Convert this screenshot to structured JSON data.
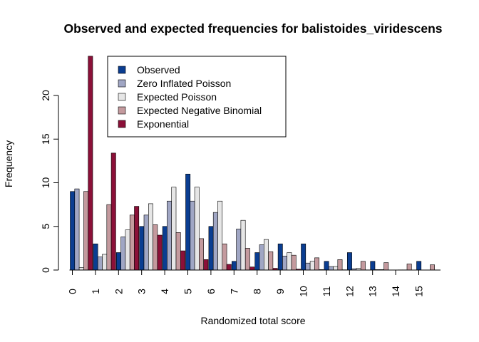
{
  "chart_data": {
    "type": "bar",
    "title": "Observed and expected frequencies for balistoides_viridescens",
    "xlabel": "Randomized total score",
    "ylabel": "Frequency",
    "ylim": [
      0,
      25
    ],
    "yticks": [
      "0",
      "5",
      "10",
      "15",
      "20"
    ],
    "categories": [
      "0",
      "1",
      "2",
      "3",
      "4",
      "5",
      "6",
      "7",
      "8",
      "9",
      "10",
      "11",
      "12",
      "13",
      "14",
      "15"
    ],
    "legend_position": "top-center",
    "series": [
      {
        "name": "Observed",
        "color": "#0a3d91",
        "values": [
          9,
          3,
          2,
          5,
          5,
          11,
          5,
          1,
          2,
          3,
          3,
          1,
          2,
          1,
          0,
          1
        ]
      },
      {
        "name": "Zero Inflated Poisson",
        "color": "#a0a6c4",
        "values": [
          9.3,
          1.5,
          3.8,
          6.3,
          7.9,
          7.9,
          6.6,
          4.7,
          2.9,
          1.6,
          0.8,
          0.4,
          0.15,
          0.05,
          0.02,
          0.01
        ]
      },
      {
        "name": "Expected Poisson",
        "color": "#e6e6e6",
        "values": [
          0.3,
          1.8,
          4.6,
          7.6,
          9.5,
          9.5,
          7.9,
          5.7,
          3.5,
          2.0,
          1.0,
          0.4,
          0.2,
          0.05,
          0.02,
          0.01
        ]
      },
      {
        "name": "Expected Negative Binomial",
        "color": "#c49a9e",
        "values": [
          9.0,
          7.5,
          6.3,
          5.2,
          4.3,
          3.6,
          3.0,
          2.5,
          2.1,
          1.7,
          1.4,
          1.2,
          1.0,
          0.85,
          0.7,
          0.6
        ]
      },
      {
        "name": "Exponential",
        "color": "#8b1038",
        "values": [
          24.5,
          13.4,
          7.3,
          4.0,
          2.2,
          1.2,
          0.65,
          0.35,
          0.2,
          0.1,
          0.05,
          0.03,
          0.02,
          0.01,
          0.005,
          0.003
        ]
      }
    ]
  }
}
